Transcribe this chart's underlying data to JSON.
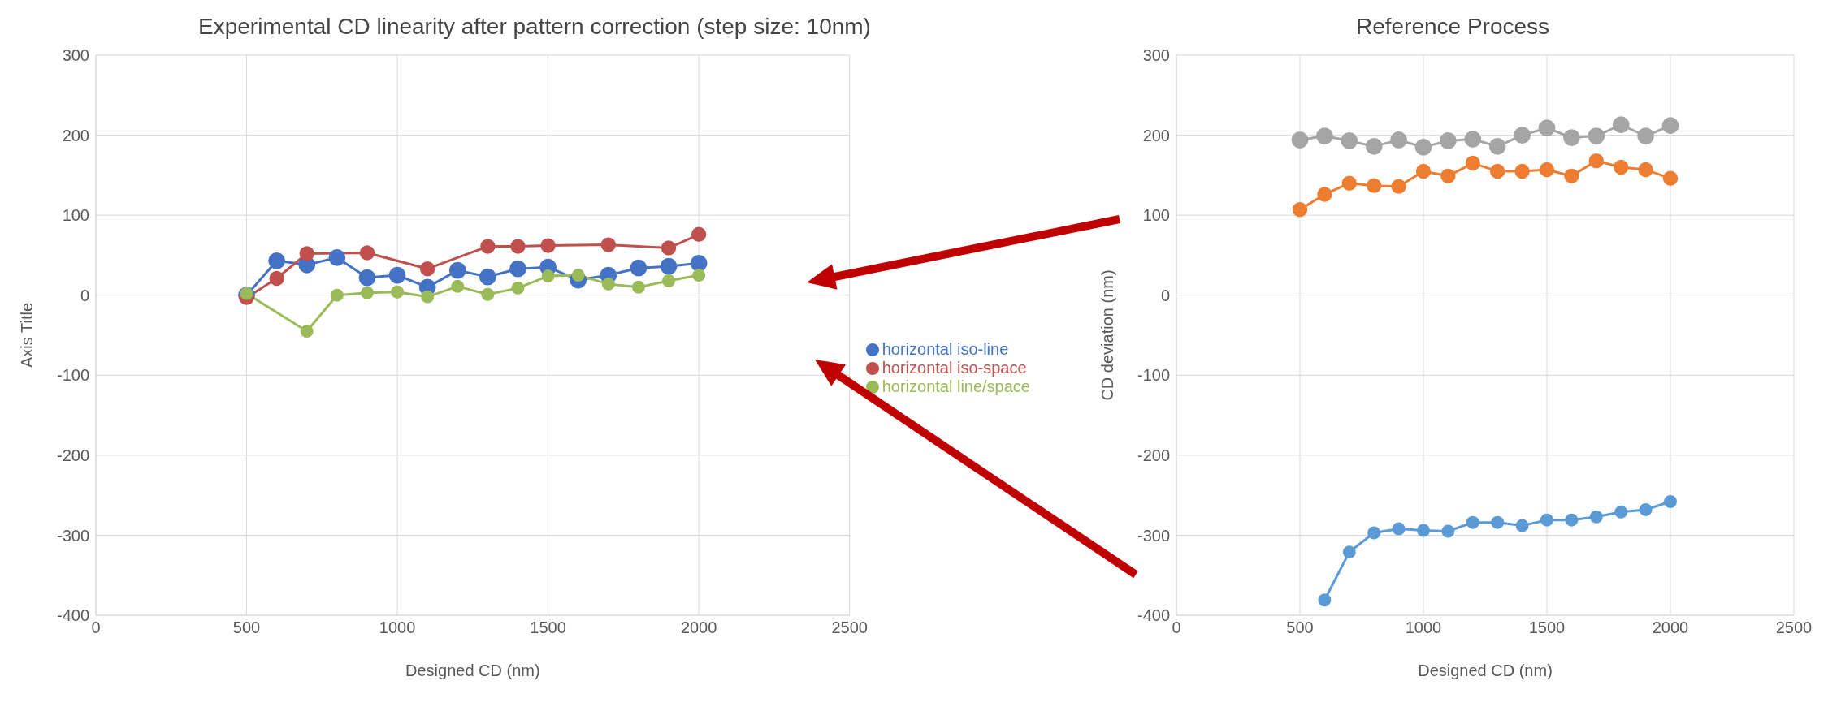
{
  "chart_data": [
    {
      "type": "line",
      "title": "Experimental CD linearity after pattern correction (step size: 10nm)",
      "xlabel": "Designed CD (nm)",
      "ylabel": "Axis Title",
      "xlim": [
        0,
        2500
      ],
      "xticks": [
        0,
        500,
        1000,
        1500,
        2000,
        2500
      ],
      "ylim": [
        -400,
        300
      ],
      "yticks": [
        -400,
        -300,
        -200,
        -100,
        0,
        100,
        200,
        300
      ],
      "grid": true,
      "legend": "right",
      "marker": "circle",
      "line_style": "solid",
      "series": [
        {
          "name": "horizontal iso-line",
          "color": "#4472c4",
          "x": [
            500,
            600,
            700,
            800,
            900,
            1000,
            1100,
            1200,
            1300,
            1400,
            1500,
            1600,
            1700,
            1800,
            1900,
            2000
          ],
          "values": [
            0,
            43,
            38,
            47,
            22,
            25,
            10,
            31,
            23,
            33,
            35,
            19,
            25,
            34,
            36,
            40
          ]
        },
        {
          "name": "horizontal iso-space",
          "color": "#c0504d",
          "x": [
            500,
            600,
            700,
            900,
            1100,
            1300,
            1400,
            1500,
            1700,
            1900,
            2000
          ],
          "values": [
            -3,
            21,
            52,
            53,
            33,
            61,
            61,
            62,
            63,
            59,
            76
          ]
        },
        {
          "name": "horizontal line/space",
          "color": "#9bbb59",
          "x": [
            500,
            700,
            800,
            900,
            1000,
            1100,
            1200,
            1300,
            1400,
            1500,
            1600,
            1700,
            1800,
            1900,
            2000
          ],
          "values": [
            2,
            -45,
            0,
            3,
            4,
            -2,
            11,
            1,
            9,
            24,
            25,
            14,
            10,
            18,
            25
          ]
        }
      ]
    },
    {
      "type": "line",
      "title": "Reference Process",
      "xlabel": "Designed CD (nm)",
      "ylabel": "CD deviation (nm)",
      "xlim": [
        0,
        2500
      ],
      "xticks": [
        0,
        500,
        1000,
        1500,
        2000,
        2500
      ],
      "ylim": [
        -400,
        300
      ],
      "yticks": [
        -400,
        -300,
        -200,
        -100,
        0,
        100,
        200,
        300
      ],
      "grid": true,
      "marker": "circle",
      "line_style": "solid",
      "series": [
        {
          "color": "#a5a5a5",
          "x": [
            500,
            600,
            700,
            800,
            900,
            1000,
            1100,
            1200,
            1300,
            1400,
            1500,
            1600,
            1700,
            1800,
            1900,
            2000
          ],
          "values": [
            194,
            199,
            193,
            186,
            194,
            185,
            193,
            195,
            186,
            200,
            209,
            197,
            199,
            213,
            199,
            212
          ]
        },
        {
          "color": "#ed7d31",
          "x": [
            500,
            600,
            700,
            800,
            900,
            1000,
            1100,
            1200,
            1300,
            1400,
            1500,
            1600,
            1700,
            1800,
            1900,
            2000
          ],
          "values": [
            107,
            126,
            140,
            137,
            136,
            155,
            149,
            165,
            155,
            155,
            157,
            149,
            168,
            160,
            157,
            146
          ]
        },
        {
          "color": "#5b9bd5",
          "x": [
            600,
            700,
            800,
            900,
            1000,
            1100,
            1200,
            1300,
            1400,
            1500,
            1600,
            1700,
            1800,
            1900,
            2000
          ],
          "values": [
            -381,
            -321,
            -297,
            -292,
            -294,
            -295,
            -284,
            -284,
            -288,
            -281,
            -281,
            -277,
            -271,
            -268,
            -258
          ]
        }
      ]
    }
  ]
}
